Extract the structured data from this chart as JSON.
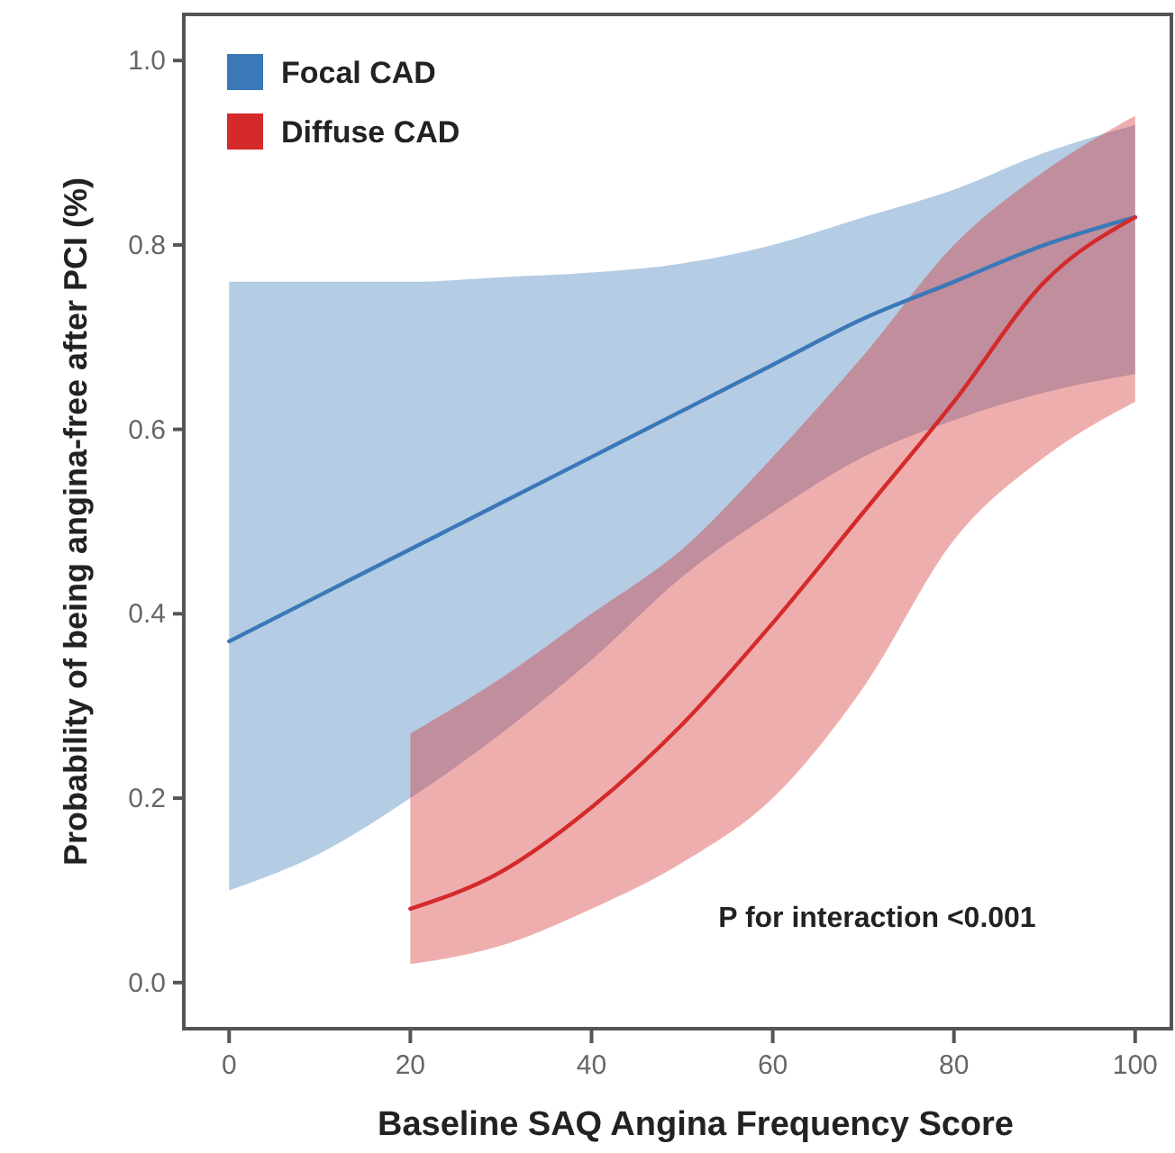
{
  "chart_data": {
    "type": "line",
    "xlabel": "Baseline SAQ Angina Frequency Score",
    "ylabel": "Probability of being angina-free after PCI (%)",
    "xlim": [
      -5,
      104
    ],
    "xticks": [
      0,
      20,
      40,
      60,
      80,
      100
    ],
    "ylim": [
      -0.05,
      1.05
    ],
    "yticks": [
      {
        "value": 0,
        "label": "0.0"
      },
      {
        "value": 0.2,
        "label": "0.2"
      },
      {
        "value": 0.4,
        "label": "0.4"
      },
      {
        "value": 0.6,
        "label": "0.6"
      },
      {
        "value": 0.8,
        "label": "0.8"
      },
      {
        "value": 1,
        "label": "1.0"
      }
    ],
    "grid": false,
    "legend": "top left",
    "marker": "none",
    "line_style": "solid",
    "annotations": [
      "P for interaction <0.001"
    ],
    "series": [
      {
        "name": "Focal CAD",
        "color": "#3a78b8",
        "x": [
          0,
          10,
          20,
          30,
          40,
          50,
          60,
          70,
          80,
          90,
          100
        ],
        "values": [
          0.37,
          0.42,
          0.47,
          0.52,
          0.57,
          0.62,
          0.67,
          0.72,
          0.76,
          0.8,
          0.83
        ],
        "lower": [
          0.1,
          0.14,
          0.2,
          0.27,
          0.35,
          0.44,
          0.51,
          0.57,
          0.61,
          0.64,
          0.66
        ],
        "upper": [
          0.76,
          0.76,
          0.76,
          0.765,
          0.77,
          0.78,
          0.8,
          0.83,
          0.86,
          0.9,
          0.93
        ]
      },
      {
        "name": "Diffuse CAD",
        "color": "#d42a2a",
        "x": [
          20,
          30,
          40,
          50,
          60,
          70,
          80,
          90,
          100
        ],
        "values": [
          0.08,
          0.12,
          0.19,
          0.28,
          0.39,
          0.51,
          0.63,
          0.76,
          0.83
        ],
        "lower": [
          0.02,
          0.04,
          0.08,
          0.13,
          0.2,
          0.32,
          0.48,
          0.57,
          0.63
        ],
        "upper": [
          0.27,
          0.33,
          0.4,
          0.47,
          0.57,
          0.68,
          0.8,
          0.88,
          0.94
        ]
      }
    ]
  }
}
